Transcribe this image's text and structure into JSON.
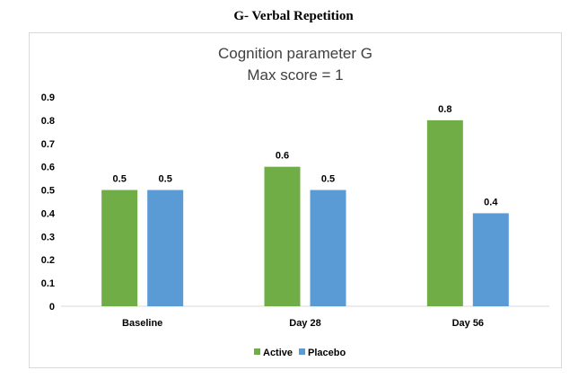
{
  "heading": "G- Verbal Repetition",
  "chart_data": {
    "type": "bar",
    "title_lines": [
      "Cognition parameter G",
      "Max score = 1"
    ],
    "categories": [
      "Baseline",
      "Day 28",
      "Day 56"
    ],
    "series": [
      {
        "name": "Active",
        "values": [
          0.5,
          0.6,
          0.8
        ],
        "color": "#70ad47"
      },
      {
        "name": "Placebo",
        "values": [
          0.5,
          0.5,
          0.4
        ],
        "color": "#5b9bd5"
      }
    ],
    "yticks": [
      "0",
      "0.1",
      "0.2",
      "0.3",
      "0.4",
      "0.5",
      "0.6",
      "0.7",
      "0.8",
      "0.9"
    ],
    "ylim": [
      0,
      0.9
    ],
    "grid": false,
    "legend_position": "bottom"
  }
}
